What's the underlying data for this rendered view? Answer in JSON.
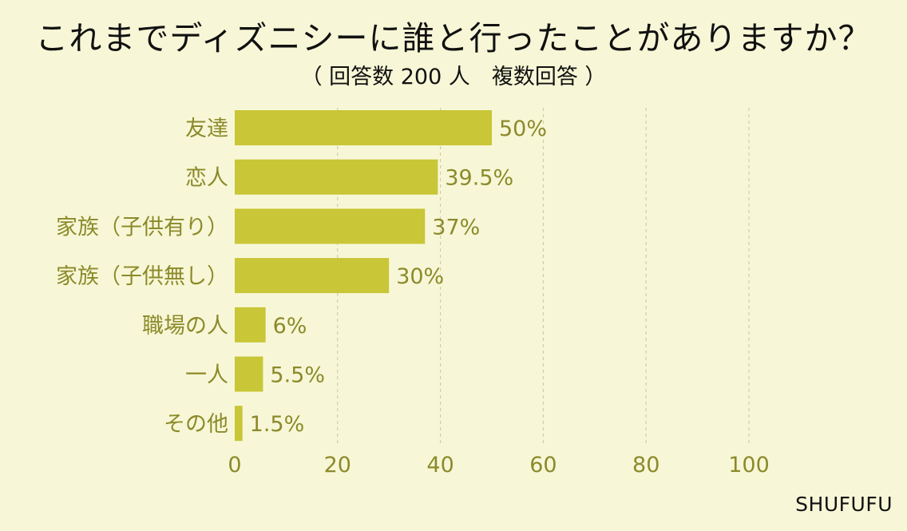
{
  "chart_data": {
    "type": "bar",
    "orientation": "horizontal",
    "title": "これまでディズニシーに誰と行ったことがありますか？",
    "subtitle": "（ 回答数 200 人　複数回答 ）",
    "categories": [
      "友達",
      "恋人",
      "家族（子供有り）",
      "家族（子供無し）",
      "職場の人",
      "一人",
      "その他"
    ],
    "values": [
      50,
      39.5,
      37,
      30,
      6,
      5.5,
      1.5
    ],
    "value_labels": [
      "50%",
      "39.5%",
      "37%",
      "30%",
      "6%",
      "5.5%",
      "1.5%"
    ],
    "xlim": [
      0,
      100
    ],
    "xticks": [
      "0",
      "20",
      "40",
      "60",
      "80",
      "100"
    ],
    "grid": "vertical dashed",
    "legend": "none",
    "bar_color": "#c9c637",
    "text_color": "#8c8a2a"
  },
  "source": "SHUFUFU"
}
